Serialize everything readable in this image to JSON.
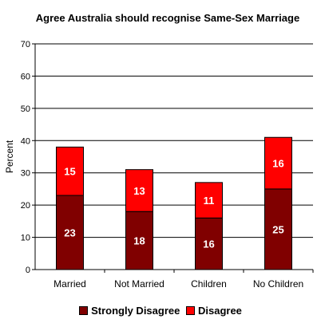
{
  "chart_data": {
    "type": "bar",
    "stacked": true,
    "title": "Agree Australia should recognise Same-Sex Marriage",
    "ylabel": "Percent",
    "xlabel": "",
    "ylim": [
      0,
      70
    ],
    "yticks": [
      0,
      10,
      20,
      30,
      40,
      50,
      60,
      70
    ],
    "grid": true,
    "legend_position": "bottom",
    "categories": [
      "Married",
      "Not Married",
      "Children",
      "No Children"
    ],
    "series": [
      {
        "name": "Strongly Disagree",
        "color": "#800000",
        "values": [
          23,
          18,
          16,
          25
        ]
      },
      {
        "name": "Disagree",
        "color": "#ff0000",
        "values": [
          15,
          13,
          11,
          16
        ]
      }
    ]
  }
}
